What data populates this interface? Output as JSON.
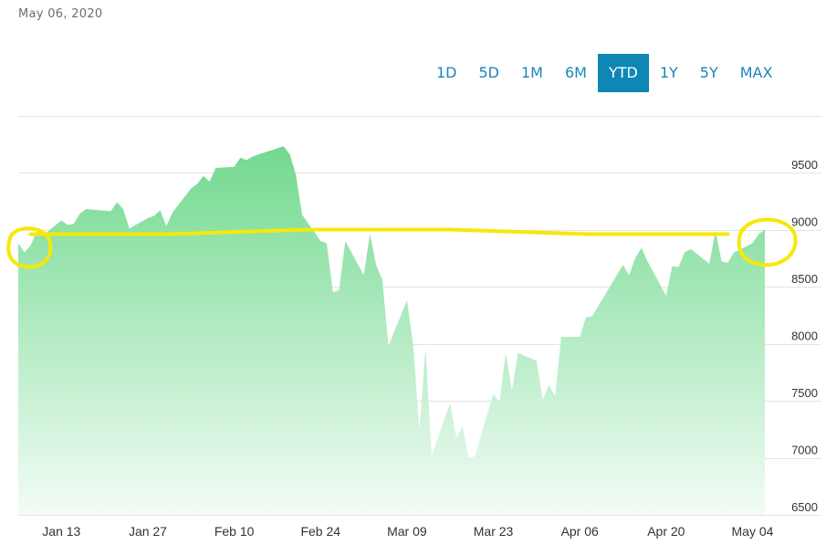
{
  "header": {
    "date": "May 06, 2020"
  },
  "range_buttons": {
    "items": [
      "1D",
      "5D",
      "1M",
      "6M",
      "YTD",
      "1Y",
      "5Y",
      "MAX"
    ],
    "active": "YTD"
  },
  "colors": {
    "area_top": "#72d98f",
    "area_bottom": "#f2fcf5",
    "annotation": "#f6e80a",
    "active_button": "#0e87b4",
    "button_text": "#1a86b8"
  },
  "chart_data": {
    "type": "area",
    "x_start": "2020-01-06",
    "x_end": "2020-05-06",
    "x_tick_labels": [
      "Jan 13",
      "Jan 27",
      "Feb 10",
      "Feb 24",
      "Mar 09",
      "Mar 23",
      "Apr 06",
      "Apr 20",
      "May 04"
    ],
    "x_tick_dates": [
      "2020-01-13",
      "2020-01-27",
      "2020-02-10",
      "2020-02-24",
      "2020-03-09",
      "2020-03-23",
      "2020-04-06",
      "2020-04-20",
      "2020-05-04"
    ],
    "y_tick_labels": [
      "6500",
      "7000",
      "7500",
      "8000",
      "8500",
      "9000",
      "9500"
    ],
    "y_ticks": [
      6500,
      7000,
      7500,
      8000,
      8500,
      9000,
      9500
    ],
    "ylim": [
      6500,
      10000
    ],
    "y_axis_side": "right",
    "grid": true,
    "series": [
      {
        "x": [
          "2020-01-06",
          "2020-01-07",
          "2020-01-08",
          "2020-01-09",
          "2020-01-10",
          "2020-01-13",
          "2020-01-14",
          "2020-01-15",
          "2020-01-16",
          "2020-01-17",
          "2020-01-21",
          "2020-01-22",
          "2020-01-23",
          "2020-01-24",
          "2020-01-27",
          "2020-01-28",
          "2020-01-29",
          "2020-01-30",
          "2020-01-31",
          "2020-02-03",
          "2020-02-04",
          "2020-02-05",
          "2020-02-06",
          "2020-02-07",
          "2020-02-10",
          "2020-02-11",
          "2020-02-12",
          "2020-02-13",
          "2020-02-14",
          "2020-02-18",
          "2020-02-19",
          "2020-02-20",
          "2020-02-21",
          "2020-02-24",
          "2020-02-25",
          "2020-02-26",
          "2020-02-27",
          "2020-02-28",
          "2020-03-02",
          "2020-03-03",
          "2020-03-04",
          "2020-03-05",
          "2020-03-06",
          "2020-03-09",
          "2020-03-10",
          "2020-03-11",
          "2020-03-12",
          "2020-03-13",
          "2020-03-16",
          "2020-03-17",
          "2020-03-18",
          "2020-03-19",
          "2020-03-20",
          "2020-03-23",
          "2020-03-24",
          "2020-03-25",
          "2020-03-26",
          "2020-03-27",
          "2020-03-30",
          "2020-03-31",
          "2020-04-01",
          "2020-04-02",
          "2020-04-03",
          "2020-04-06",
          "2020-04-07",
          "2020-04-08",
          "2020-04-09",
          "2020-04-13",
          "2020-04-14",
          "2020-04-15",
          "2020-04-16",
          "2020-04-17",
          "2020-04-20",
          "2020-04-21",
          "2020-04-22",
          "2020-04-23",
          "2020-04-24",
          "2020-04-27",
          "2020-04-28",
          "2020-04-29",
          "2020-04-30",
          "2020-05-01",
          "2020-05-04",
          "2020-05-05",
          "2020-05-06"
        ],
        "y": [
          8880,
          8800,
          8860,
          8990,
          8950,
          9080,
          9040,
          9050,
          9140,
          9180,
          9160,
          9240,
          9180,
          9010,
          9100,
          9120,
          9170,
          9030,
          9150,
          9360,
          9400,
          9470,
          9420,
          9540,
          9550,
          9630,
          9610,
          9640,
          9660,
          9730,
          9660,
          9480,
          9130,
          8900,
          8880,
          8450,
          8470,
          8900,
          8600,
          8960,
          8690,
          8560,
          7980,
          8380,
          7990,
          7240,
          7960,
          7020,
          7480,
          7170,
          7280,
          7000,
          7010,
          7560,
          7490,
          7920,
          7590,
          7920,
          7850,
          7510,
          7640,
          7540,
          8060,
          8060,
          8230,
          8240,
          8330,
          8690,
          8600,
          8750,
          8840,
          8720,
          8420,
          8680,
          8670,
          8800,
          8830,
          8700,
          8990,
          8720,
          8710,
          8800,
          8880,
          8960,
          9000
        ]
      }
    ],
    "annotations": [
      {
        "type": "hand-drawn-line",
        "x_from": "2020-01-08",
        "x_to": "2020-04-30",
        "y_values": [
          8960,
          8960,
          9000,
          9000,
          8960,
          8960
        ]
      },
      {
        "type": "hand-drawn-circle",
        "near": "2020-01-07"
      },
      {
        "type": "hand-drawn-circle",
        "near": "2020-05-04"
      }
    ]
  }
}
